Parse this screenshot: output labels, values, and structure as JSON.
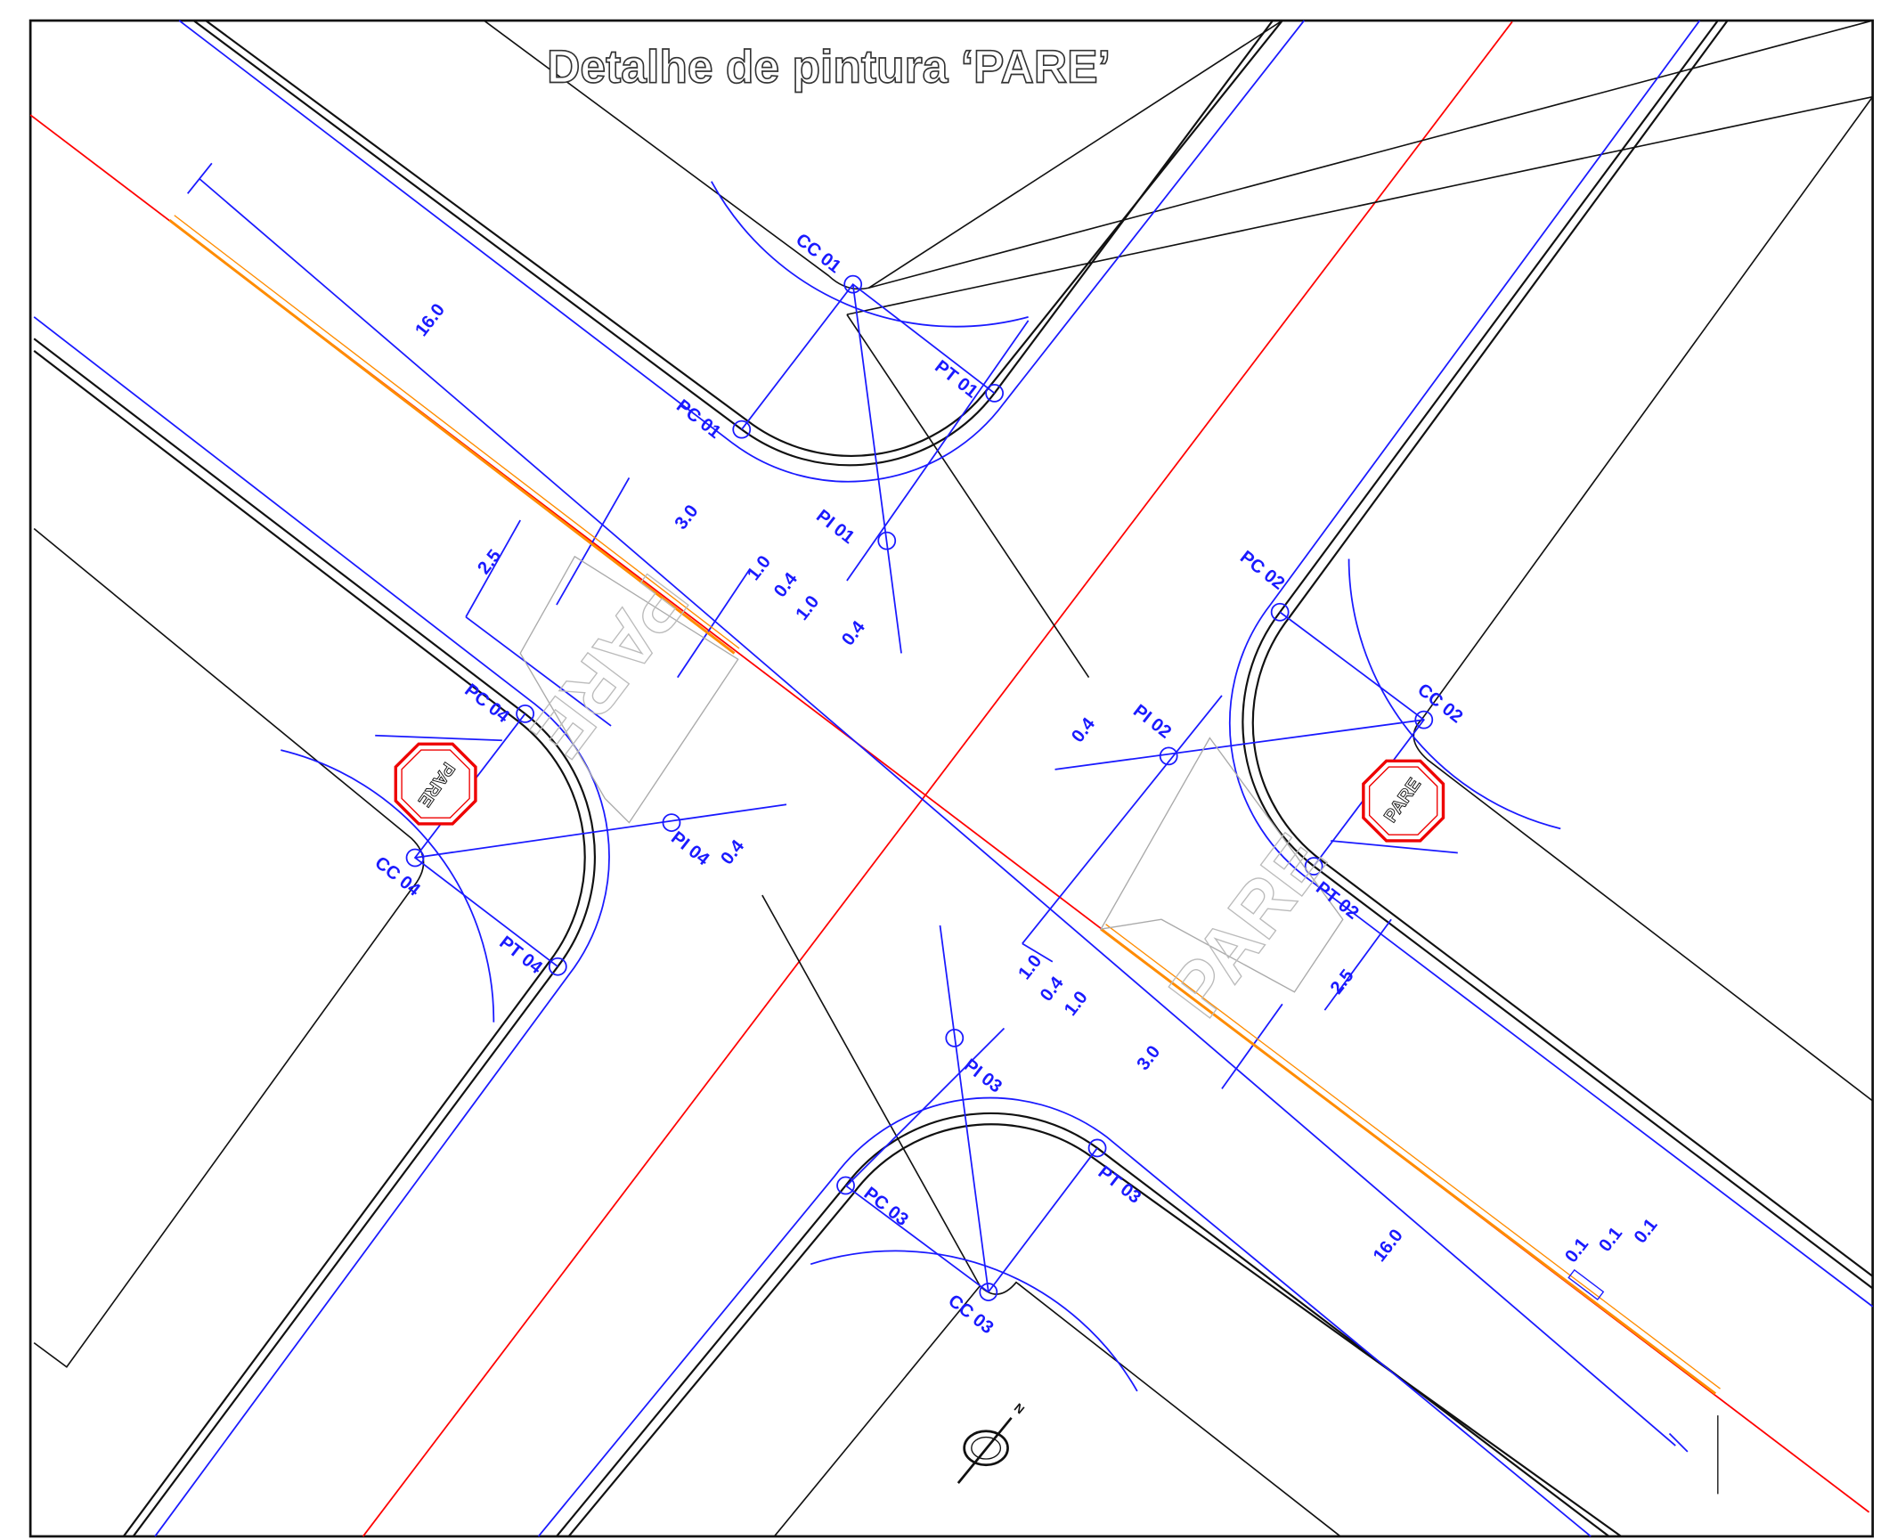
{
  "title": "Detalhe de pintura ‘PARE’",
  "points": [
    "CC 01",
    "PT 01",
    "PC 01",
    "PI 01",
    "PC 02",
    "CC 02",
    "PI 02",
    "PT 02",
    "PC 03",
    "PI 03",
    "PT 03",
    "CC 03",
    "PC 04",
    "CC 04",
    "PI 04",
    "PT 04"
  ],
  "dimensions": [
    "16.0",
    "3.0",
    "2.5",
    "1.0",
    "0.4",
    "1.0",
    "0.4",
    "0.4",
    "0.4",
    "1.0",
    "0.4",
    "1.0",
    "3.0",
    "2.5",
    "16.0",
    "0.1",
    "0.1",
    "0.1"
  ],
  "signs": [
    "PARE",
    "PARE"
  ],
  "pavement_markings": [
    "PARE",
    "PARE"
  ],
  "north": "N"
}
